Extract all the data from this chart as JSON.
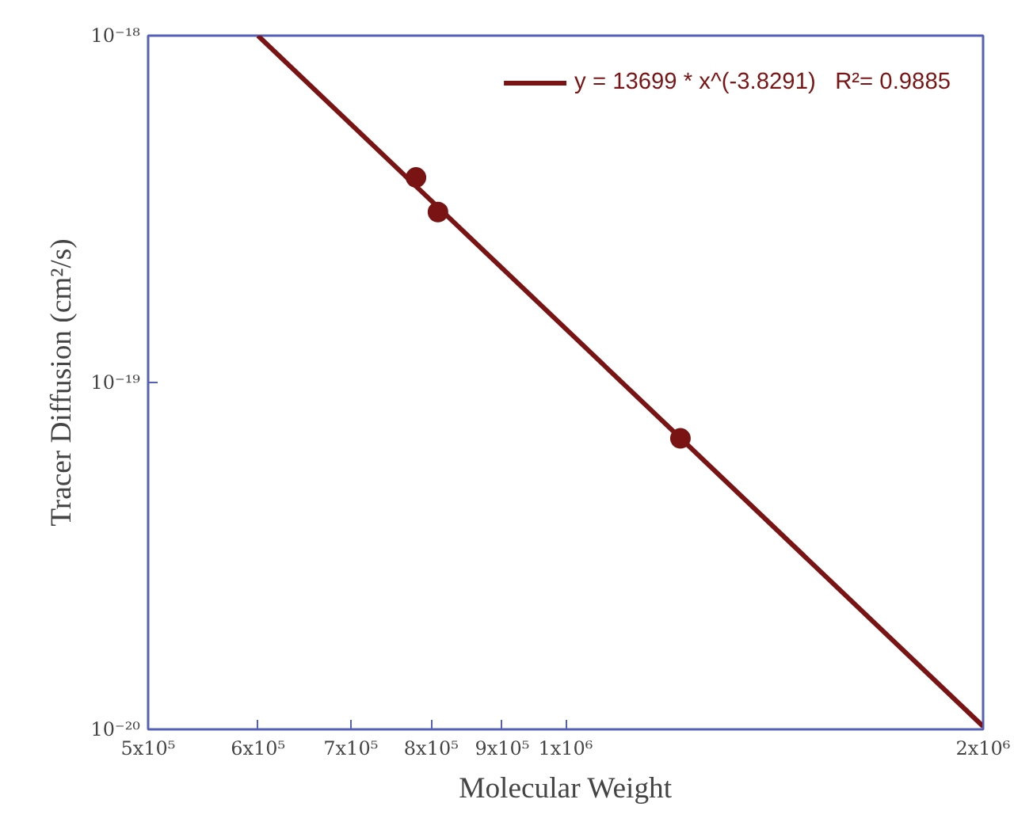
{
  "chart_data": {
    "type": "scatter",
    "xlabel": "Molecular Weight",
    "ylabel": "Tracer Diffusion (cm²/s)",
    "log": "xy",
    "grid": false,
    "legend": "top right",
    "marker": "circle",
    "xlim": [
      500000,
      2000000
    ],
    "ylim": [
      1e-20,
      1e-18
    ],
    "xticks": [
      {
        "value": 500000,
        "label": "5x10⁵"
      },
      {
        "value": 600000,
        "label": "6x10⁵"
      },
      {
        "value": 700000,
        "label": "7x10⁵"
      },
      {
        "value": 800000,
        "label": "8x10⁵"
      },
      {
        "value": 900000,
        "label": "9x10⁵"
      },
      {
        "value": 1000000,
        "label": "1x10⁶"
      },
      {
        "value": 2000000,
        "label": "2x10⁶"
      }
    ],
    "yticks": [
      {
        "value": 1e-20,
        "label": "10⁻²⁰"
      },
      {
        "value": 1e-19,
        "label": "10⁻¹⁹"
      },
      {
        "value": 1e-18,
        "label": "10⁻¹⁸"
      }
    ],
    "series": [
      {
        "color": "#7a1414",
        "x": [
          780000,
          809000,
          1210000
        ],
        "values": [
          3.9e-19,
          3.1e-19,
          6.9e-20
        ]
      },
      {
        "type": "line",
        "name": "y = 13699 * x^(-3.8291)   R²= 0.9885",
        "color": "#7a1414",
        "marker": "none",
        "x": [
          600000,
          2000000
        ],
        "values": [
          1e-18,
          1.02e-20
        ]
      }
    ]
  }
}
